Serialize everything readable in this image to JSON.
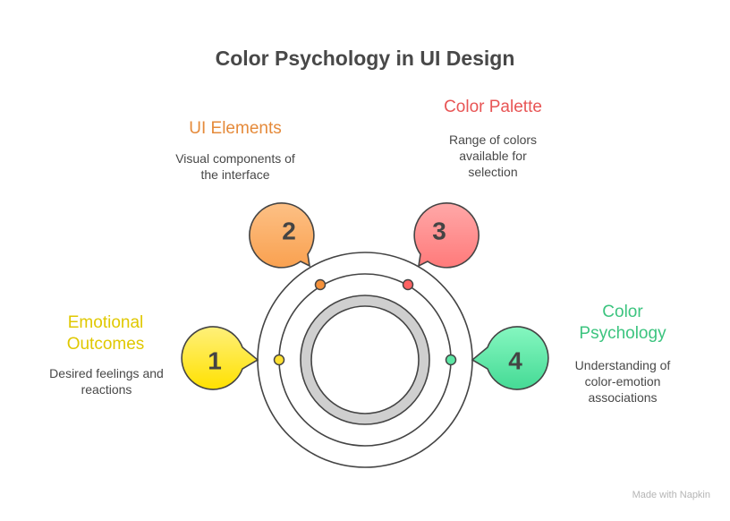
{
  "title": "Color Psychology in UI Design",
  "items": [
    {
      "number": "1",
      "title": "Emotional Outcomes",
      "description": "Desired feelings and reactions",
      "color": "#FFE100",
      "title_color": "#E0C800"
    },
    {
      "number": "2",
      "title": "UI Elements",
      "description": "Visual components of the interface",
      "color": "#F9A55A",
      "title_color": "#E58A3A"
    },
    {
      "number": "3",
      "title": "Color Palette",
      "description": "Range of colors available for selection",
      "color": "#FF8080",
      "title_color": "#E85555"
    },
    {
      "number": "4",
      "title": "Color Psychology",
      "description": "Understanding of color-emotion associations",
      "color": "#4DE09A",
      "title_color": "#3CC47F"
    }
  ],
  "footer": "Made with Napkin"
}
